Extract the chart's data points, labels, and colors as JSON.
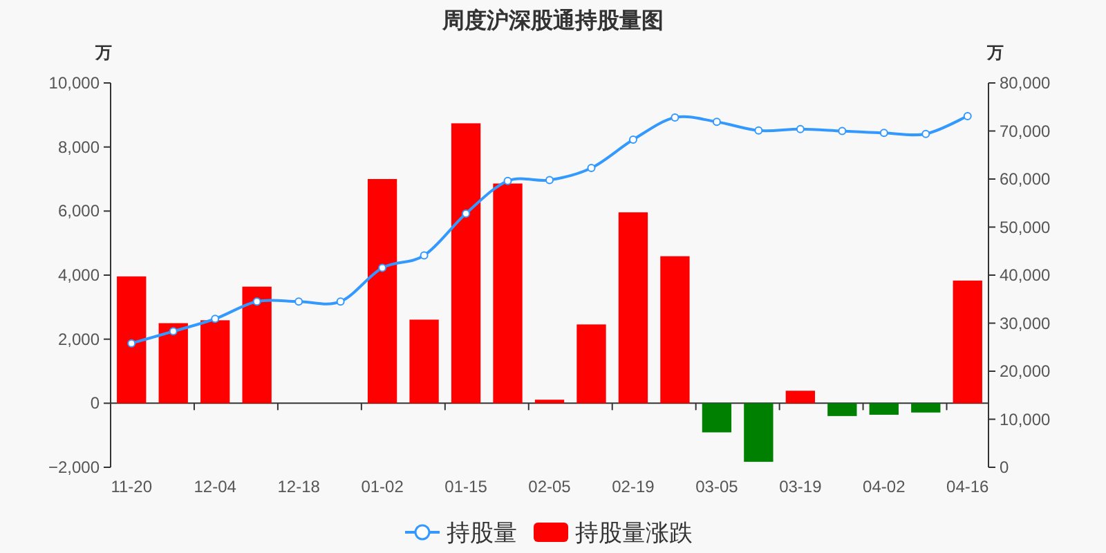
{
  "chart_data": {
    "type": "bar",
    "title": "周度沪深股通持股量图",
    "ylabel": "万",
    "y2label": "万",
    "categories": [
      "11-20",
      null,
      "12-04",
      null,
      "12-18",
      null,
      "01-02",
      null,
      "01-15",
      null,
      "02-05",
      null,
      "02-19",
      null,
      "03-05",
      null,
      "03-19",
      null,
      "04-02",
      null,
      "04-16"
    ],
    "series": [
      {
        "name": "持股量涨跌",
        "color": "#ff0000",
        "colors": [
          "#ff0000",
          "#ff0000",
          "#ff0000",
          "#ff0000",
          "#ff0000",
          "#ff0000",
          "#ff0000",
          "#ff0000",
          "#ff0000",
          "#ff0000",
          "#ff0000",
          "#ff0000",
          "#ff0000",
          "#ff0000",
          "#008000",
          "#008000",
          "#ff0000",
          "#008000",
          "#008000",
          "#008000",
          "#ff0000"
        ],
        "values": [
          3960,
          2500,
          2590,
          3640,
          0,
          0,
          7000,
          2610,
          8740,
          6860,
          110,
          2460,
          5960,
          4590,
          -910,
          -1830,
          390,
          -400,
          -360,
          -290,
          3830
        ]
      },
      {
        "name": "持股量",
        "type": "line",
        "axis": "y2",
        "color": "#3399ff",
        "marker": "circle",
        "values": [
          25800,
          28300,
          30900,
          34500,
          34500,
          34500,
          41500,
          44100,
          52800,
          59600,
          59800,
          62300,
          68200,
          72800,
          71900,
          70100,
          70400,
          70000,
          69600,
          69400,
          73100
        ]
      }
    ],
    "ylim": [
      -2000,
      10000
    ],
    "yticks": [
      {
        "value": -2000,
        "label": "−2,000"
      },
      {
        "value": 0,
        "label": "0"
      },
      {
        "value": 2000,
        "label": "2,000"
      },
      {
        "value": 4000,
        "label": "4,000"
      },
      {
        "value": 6000,
        "label": "6,000"
      },
      {
        "value": 8000,
        "label": "8,000"
      },
      {
        "value": 10000,
        "label": "10,000"
      }
    ],
    "y2lim": [
      0,
      80000
    ],
    "y2ticks": [
      {
        "value": 0,
        "label": "0"
      },
      {
        "value": 10000,
        "label": "10,000"
      },
      {
        "value": 20000,
        "label": "20,000"
      },
      {
        "value": 30000,
        "label": "30,000"
      },
      {
        "value": 40000,
        "label": "40,000"
      },
      {
        "value": 50000,
        "label": "50,000"
      },
      {
        "value": 60000,
        "label": "60,000"
      },
      {
        "value": 70000,
        "label": "70,000"
      },
      {
        "value": 80000,
        "label": "80,000"
      }
    ],
    "legend": "bottom"
  }
}
